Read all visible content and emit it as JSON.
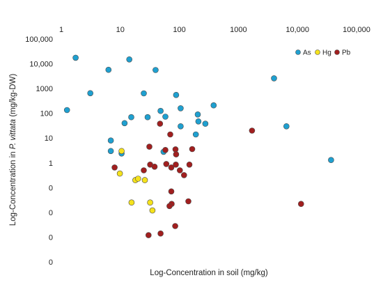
{
  "chart_data": {
    "type": "scatter",
    "xlabel": "Log-Concentration in soil (mg/kg)",
    "ylabel_prefix": "Log-Concentration in ",
    "ylabel_italic": "P. vittata",
    "ylabel_suffix": " (mg/kg-DW)",
    "x_scale": "log",
    "y_scale": "log",
    "xlim": [
      1,
      100000
    ],
    "ylim": [
      0.0001,
      100000
    ],
    "x_ticks": [
      {
        "value": 1,
        "label": "1"
      },
      {
        "value": 10,
        "label": "10"
      },
      {
        "value": 100,
        "label": "100"
      },
      {
        "value": 1000,
        "label": "1000"
      },
      {
        "value": 10000,
        "label": "10,000"
      },
      {
        "value": 100000,
        "label": "100,000"
      }
    ],
    "y_ticks": [
      {
        "value": 100000,
        "label": "100,000"
      },
      {
        "value": 10000,
        "label": "10,000"
      },
      {
        "value": 1000,
        "label": "1000"
      },
      {
        "value": 100,
        "label": "100"
      },
      {
        "value": 10,
        "label": "10"
      },
      {
        "value": 1,
        "label": "1"
      },
      {
        "value": 0.1,
        "label": "0"
      },
      {
        "value": 0.01,
        "label": "0"
      },
      {
        "value": 0.001,
        "label": "0"
      },
      {
        "value": 0.0001,
        "label": "0"
      }
    ],
    "grid": false,
    "legend_position": "top-right",
    "series": [
      {
        "name": "As",
        "color": "#1fa0d0",
        "points": [
          [
            1.25,
            135
          ],
          [
            1.75,
            17500
          ],
          [
            3.1,
            650
          ],
          [
            6.3,
            5700
          ],
          [
            14.2,
            15000
          ],
          [
            6.9,
            8
          ],
          [
            6.9,
            3
          ],
          [
            10.5,
            2.4
          ],
          [
            11.8,
            40
          ],
          [
            15.3,
            70
          ],
          [
            25,
            640
          ],
          [
            29,
            70
          ],
          [
            39.5,
            5600
          ],
          [
            48,
            125
          ],
          [
            58,
            73
          ],
          [
            54,
            2.8
          ],
          [
            88,
            550
          ],
          [
            105,
            160
          ],
          [
            105,
            30
          ],
          [
            190,
            14
          ],
          [
            205,
            90
          ],
          [
            210,
            47
          ],
          [
            275,
            38
          ],
          [
            380,
            210
          ],
          [
            4000,
            2600
          ],
          [
            6500,
            30
          ],
          [
            37000,
            1.3
          ]
        ]
      },
      {
        "name": "Hg",
        "color": "#f5e21c",
        "points": [
          [
            10.5,
            3
          ],
          [
            9.8,
            0.37
          ],
          [
            18,
            0.2
          ],
          [
            20,
            0.23
          ],
          [
            26,
            0.2
          ],
          [
            15.5,
            0.025
          ],
          [
            32,
            0.025
          ],
          [
            35,
            0.012
          ]
        ]
      },
      {
        "name": "Pb",
        "color": "#a11f1f",
        "points": [
          [
            8,
            0.65
          ],
          [
            47,
            38
          ],
          [
            31,
            4.5
          ],
          [
            32,
            0.85
          ],
          [
            38,
            0.7
          ],
          [
            25,
            0.5
          ],
          [
            58,
            3.3
          ],
          [
            60,
            0.9
          ],
          [
            70,
            14
          ],
          [
            73,
            0.65
          ],
          [
            86,
            3.5
          ],
          [
            88,
            2.2
          ],
          [
            87,
            0.85
          ],
          [
            102,
            0.5
          ],
          [
            120,
            0.32
          ],
          [
            148,
            0.85
          ],
          [
            165,
            3.6
          ],
          [
            73,
            0.07
          ],
          [
            74,
            0.022
          ],
          [
            68,
            0.018
          ],
          [
            142,
            0.028
          ],
          [
            30,
            0.0012
          ],
          [
            48,
            0.0014
          ],
          [
            85,
            0.0028
          ],
          [
            1700,
            20
          ],
          [
            11500,
            0.022
          ]
        ]
      }
    ]
  }
}
